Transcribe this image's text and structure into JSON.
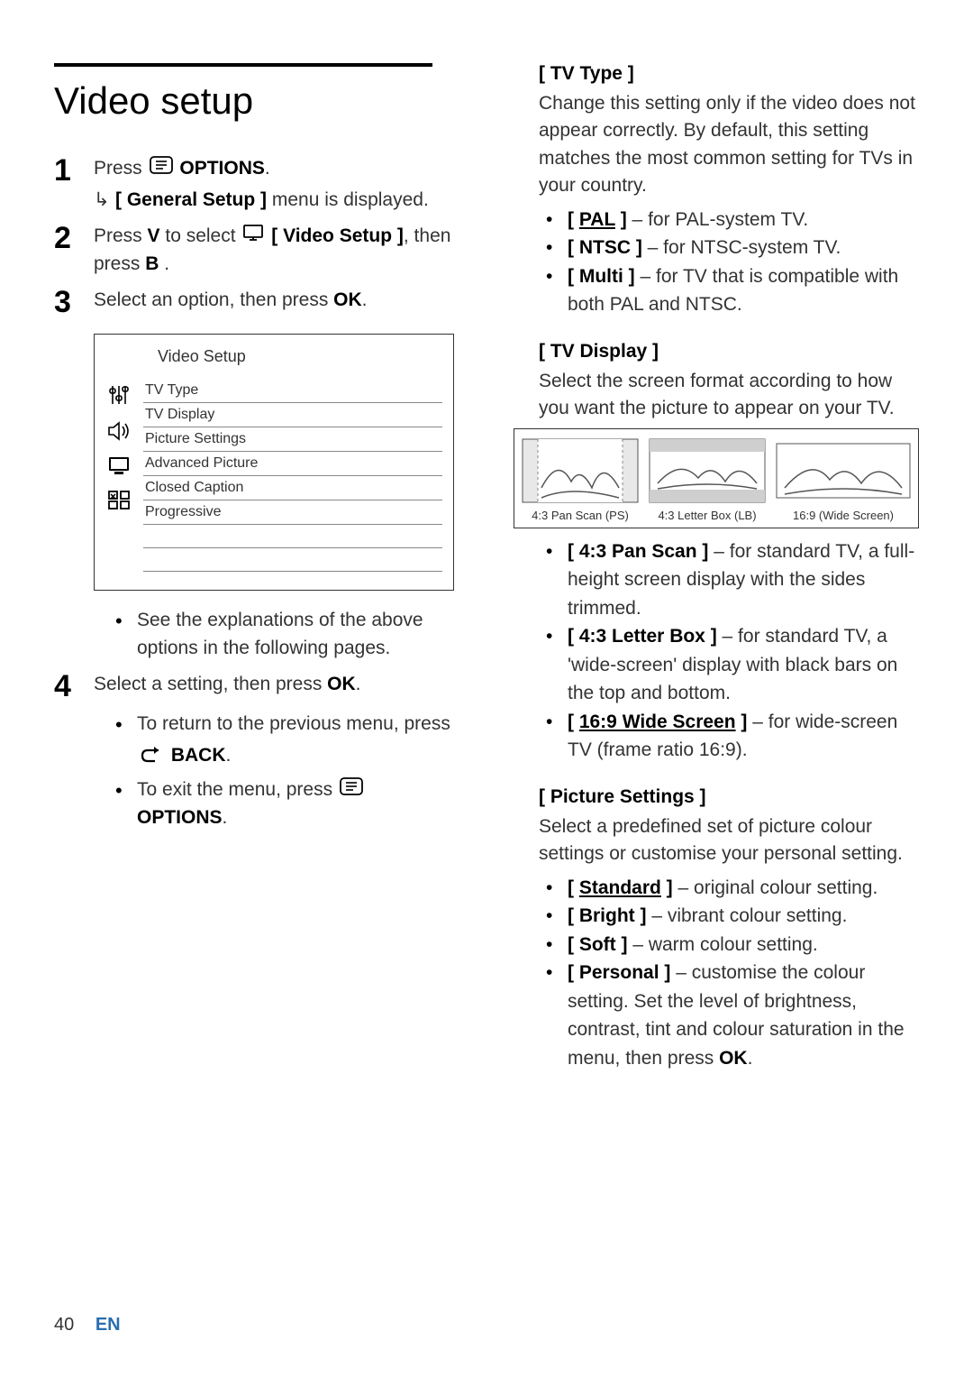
{
  "page_number": "40",
  "lang_label": "EN",
  "left": {
    "heading": "Video setup",
    "step1_a": "Press ",
    "step1_b": " OPTIONS",
    "step1_sub_a": "[ General Setup ]",
    "step1_sub_b": " menu is displayed.",
    "step2_a": "Press ",
    "step2_v": "V",
    "step2_b": " to select ",
    "step2_c": " [ Video Setup ]",
    "step2_d": ", then press ",
    "step2_e": "B",
    "step2_f": " .",
    "step3": "Select an option, then press ",
    "step3_ok": "OK",
    "step3_end": ".",
    "menu_title": "Video Setup",
    "menu_items": [
      "TV Type",
      "TV Display",
      "Picture Settings",
      "Advanced Picture",
      "Closed Caption",
      "Progressive"
    ],
    "note": "See the explanations of the above options in the following pages.",
    "step4": "Select a setting, then press ",
    "step4_ok": "OK",
    "step4_end": ".",
    "back_a": "To return to the previous menu, press",
    "back_label": " BACK",
    "back_end": ".",
    "exit_a": "To exit the menu, press ",
    "exit_b": " OPTIONS",
    "exit_end": "."
  },
  "right": {
    "tvtype_h": "[ TV Type ]",
    "tvtype_p": "Change this setting only if the video does not appear correctly.  By default, this setting matches the most common setting for TVs in your country.",
    "tvtype_items": [
      {
        "label": "[ ",
        "opt": "PAL",
        "rest": " ] – for PAL-system TV.",
        "udl": true
      },
      {
        "label": "[ ",
        "opt": "NTSC",
        "rest": " ] – for NTSC-system TV.",
        "udl": false
      },
      {
        "label": "[ ",
        "opt": "Multi",
        "rest": " ] – for TV that is compatible with both PAL and NTSC.",
        "udl": false
      }
    ],
    "tvdisp_h": "[ TV Display ]",
    "tvdisp_p": "Select the screen format according to how you want the picture to appear on your TV.",
    "disp_items": [
      {
        "caption": "4:3 Pan Scan (PS)"
      },
      {
        "caption": "4:3 Letter Box (LB)"
      },
      {
        "caption": "16:9 (Wide Screen)"
      }
    ],
    "tvdisp_bullets": [
      {
        "opt": "4:3 Pan Scan",
        "rest": " ] – for standard TV, a full-height screen display with the sides trimmed.",
        "udl": false
      },
      {
        "opt": "4:3 Letter Box",
        "rest": " ] – for standard TV,  a 'wide-screen' display with black bars on the top and bottom.",
        "udl": false
      },
      {
        "opt": "16:9 Wide Screen",
        "rest": " ] – for wide-screen TV (frame ratio 16:9).",
        "udl": true
      }
    ],
    "pic_h": "[ Picture Settings ]",
    "pic_p": "Select a predefined set of picture colour settings or customise your personal setting.",
    "pic_bullets": [
      {
        "opt": "Standard",
        "rest": " ] – original colour setting.",
        "udl": true
      },
      {
        "opt": "Bright",
        "rest": " ] – vibrant colour setting.",
        "udl": false
      },
      {
        "opt": "Soft",
        "rest": " ] – warm colour setting.",
        "udl": false
      },
      {
        "opt": "Personal",
        "rest": " ] – customise the colour setting.  Set the level of brightness, contrast, tint and colour saturation in the menu, then press ",
        "udl": false,
        "ok": "OK",
        "end": "."
      }
    ]
  },
  "colors": {
    "text": "#333333",
    "link": "#2a6db0",
    "border": "#333333"
  }
}
